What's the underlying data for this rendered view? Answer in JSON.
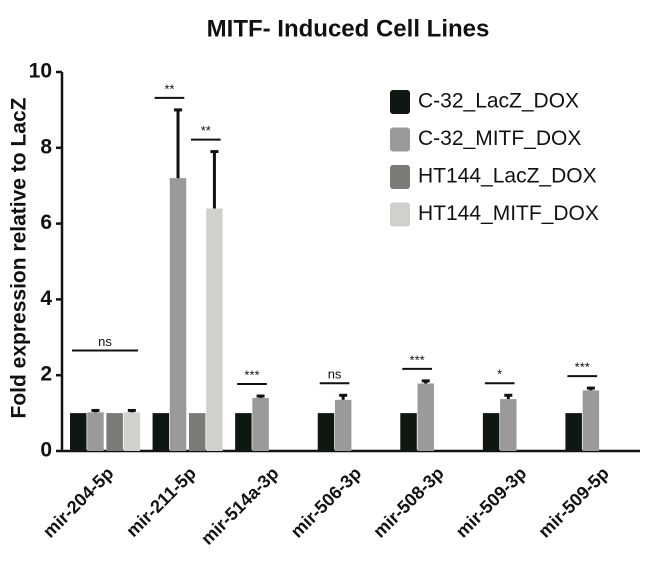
{
  "chart_data": {
    "type": "bar",
    "title": "MITF- Induced Cell Lines",
    "y_label": "Fold expression relative to LacZ",
    "categories": [
      "mir-204-5p",
      "mir-211-5p",
      "mir-514a-3p",
      "mir-506-3p",
      "mir-508-3p",
      "mir-509-3p",
      "mir-509-5p"
    ],
    "series": [
      {
        "name": "C-32_LacZ_DOX",
        "color": "#0f1712",
        "values": [
          1,
          1,
          1,
          1,
          1,
          1,
          1
        ],
        "errors": [
          null,
          null,
          null,
          null,
          null,
          null,
          null
        ]
      },
      {
        "name": "C-32_MITF_DOX",
        "color": "#9a9a9a",
        "values": [
          1.02,
          7.2,
          1.4,
          1.35,
          1.78,
          1.37,
          1.6
        ],
        "errors": [
          0.05,
          1.8,
          0.05,
          0.12,
          0.07,
          0.1,
          0.06
        ]
      },
      {
        "name": "HT144_LacZ_DOX",
        "color": "#7a7a76",
        "values": [
          1,
          1,
          null,
          null,
          null,
          null,
          null
        ],
        "errors": [
          null,
          null,
          null,
          null,
          null,
          null,
          null
        ]
      },
      {
        "name": "HT144_MITF_DOX",
        "color": "#d0d0cc",
        "values": [
          1.02,
          6.4,
          null,
          null,
          null,
          null,
          null
        ],
        "errors": [
          0.05,
          1.5,
          null,
          null,
          null,
          null,
          null
        ]
      }
    ],
    "significance": [
      {
        "category": "mir-204-5p",
        "from": "C-32_LacZ_DOX",
        "to": "HT144_MITF_DOX",
        "label": "ns"
      },
      {
        "category": "mir-211-5p",
        "from": "C-32_LacZ_DOX",
        "to": "C-32_MITF_DOX",
        "label": "**"
      },
      {
        "category": "mir-211-5p",
        "from": "HT144_LacZ_DOX",
        "to": "HT144_MITF_DOX",
        "label": "**"
      },
      {
        "category": "mir-514a-3p",
        "from": "C-32_LacZ_DOX",
        "to": "C-32_MITF_DOX",
        "label": "***"
      },
      {
        "category": "mir-506-3p",
        "from": "C-32_LacZ_DOX",
        "to": "C-32_MITF_DOX",
        "label": "ns"
      },
      {
        "category": "mir-508-3p",
        "from": "C-32_LacZ_DOX",
        "to": "C-32_MITF_DOX",
        "label": "***"
      },
      {
        "category": "mir-509-3p",
        "from": "C-32_LacZ_DOX",
        "to": "C-32_MITF_DOX",
        "label": "*"
      },
      {
        "category": "mir-509-5p",
        "from": "C-32_LacZ_DOX",
        "to": "C-32_MITF_DOX",
        "label": "***"
      }
    ],
    "ylim": [
      0,
      10
    ],
    "yticks": [
      0,
      2,
      4,
      6,
      8,
      10
    ],
    "grid": false,
    "legend": "top-right"
  }
}
